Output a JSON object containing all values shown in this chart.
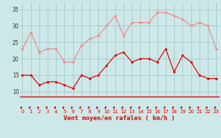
{
  "x": [
    0,
    1,
    2,
    3,
    4,
    5,
    6,
    7,
    8,
    9,
    10,
    11,
    12,
    13,
    14,
    15,
    16,
    17,
    18,
    19,
    20,
    21,
    22,
    23
  ],
  "wind_avg": [
    15,
    15,
    12,
    13,
    13,
    12,
    11,
    15,
    14,
    15,
    18,
    21,
    22,
    19,
    20,
    20,
    19,
    23,
    16,
    21,
    19,
    15,
    14,
    14
  ],
  "wind_gust": [
    23,
    28,
    22,
    23,
    23,
    19,
    19,
    24,
    26,
    27,
    30,
    33,
    27,
    31,
    31,
    31,
    34,
    34,
    33,
    32,
    30,
    31,
    30,
    23
  ],
  "bg_color": "#cce8e8",
  "grid_color": "#aacccc",
  "avg_color": "#dd0000",
  "gust_color": "#ee8888",
  "xlabel": "Vent moyen/en rafales ( km/h )",
  "yticks": [
    10,
    15,
    20,
    25,
    30,
    35
  ],
  "xticks": [
    0,
    1,
    2,
    3,
    4,
    5,
    6,
    7,
    8,
    9,
    10,
    11,
    12,
    13,
    14,
    15,
    16,
    17,
    18,
    19,
    20,
    21,
    22,
    23
  ],
  "ylim": [
    8.5,
    37
  ],
  "xlim": [
    -0.3,
    23.3
  ]
}
